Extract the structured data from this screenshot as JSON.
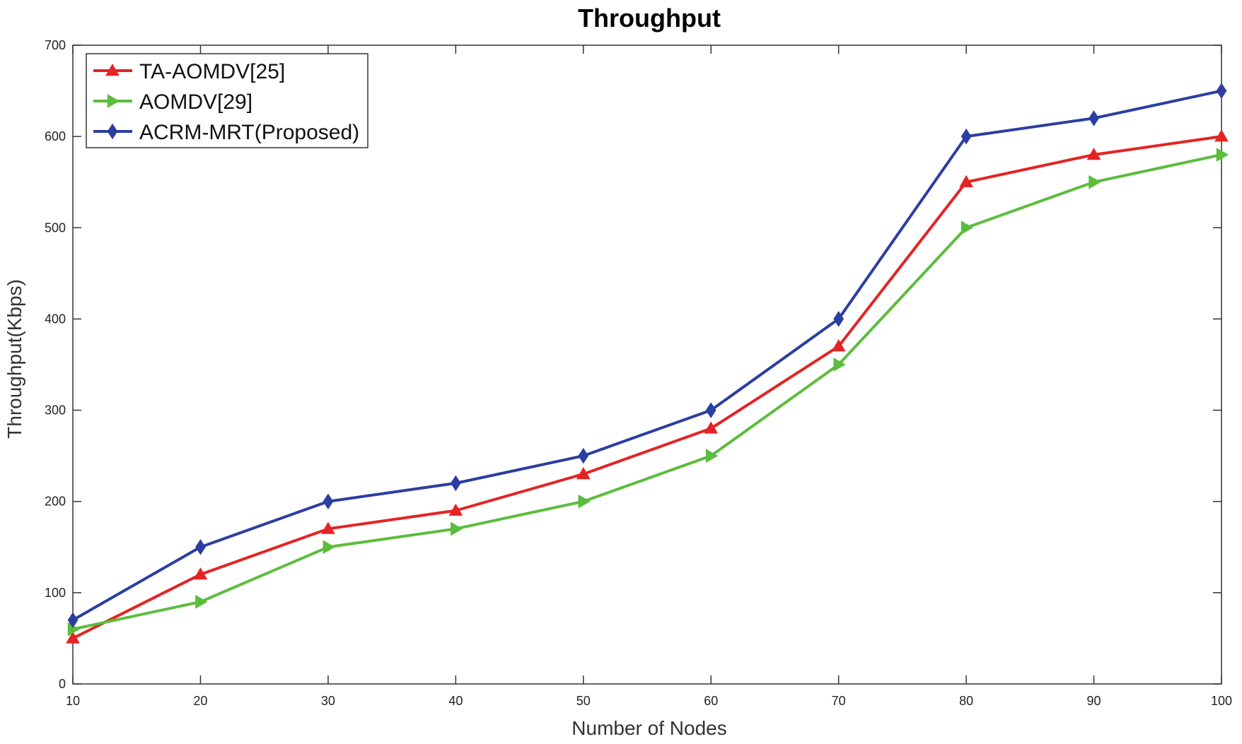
{
  "chart_data": {
    "type": "line",
    "title": "Throughput",
    "xlabel": "Number of Nodes",
    "ylabel": "Throughput(Kbps)",
    "x": [
      10,
      20,
      30,
      40,
      50,
      60,
      70,
      80,
      90,
      100
    ],
    "xlim": [
      10,
      100
    ],
    "ylim": [
      0,
      700
    ],
    "xticks": [
      "10",
      "20",
      "30",
      "40",
      "50",
      "60",
      "70",
      "80",
      "90",
      "100"
    ],
    "yticks": [
      "0",
      "100",
      "200",
      "300",
      "400",
      "500",
      "600",
      "700"
    ],
    "grid": false,
    "legend_position": "top-left",
    "series": [
      {
        "name": "TA-AOMDV[25]",
        "color": "#e32424",
        "marker": "triangle-up",
        "values": [
          50,
          120,
          170,
          190,
          230,
          280,
          370,
          550,
          580,
          600
        ]
      },
      {
        "name": "AOMDV[29]",
        "color": "#5bbd3c",
        "marker": "triangle-right",
        "values": [
          60,
          90,
          150,
          170,
          200,
          250,
          350,
          500,
          550,
          580
        ]
      },
      {
        "name": "ACRM-MRT(Proposed)",
        "color": "#2b3ea1",
        "marker": "diamond",
        "values": [
          70,
          150,
          200,
          220,
          250,
          300,
          400,
          600,
          620,
          650
        ]
      }
    ]
  }
}
